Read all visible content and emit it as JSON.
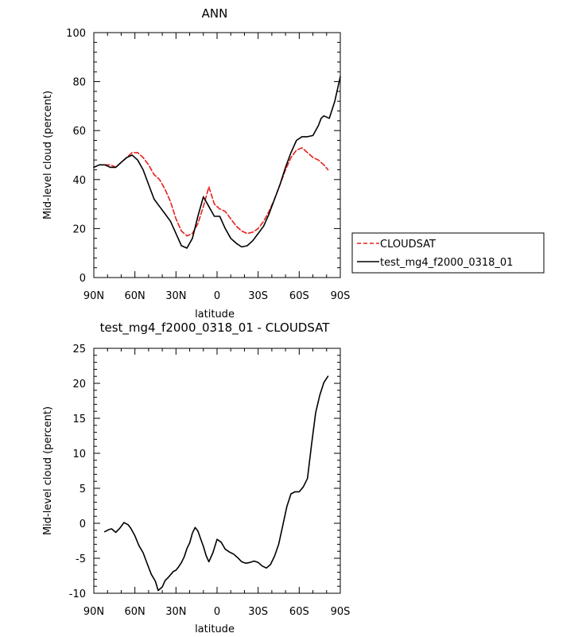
{
  "chart_data": [
    {
      "type": "line",
      "title": "ANN",
      "xlabel": "latitude",
      "ylabel": "Mid-level cloud (percent)",
      "xlim": [
        90,
        -90
      ],
      "ylim": [
        0,
        100
      ],
      "yticks": [
        0,
        20,
        40,
        60,
        80,
        100
      ],
      "xticks": [
        {
          "value": 90,
          "label": "90N"
        },
        {
          "value": 60,
          "label": "60N"
        },
        {
          "value": 30,
          "label": "30N"
        },
        {
          "value": 0,
          "label": "0"
        },
        {
          "value": -30,
          "label": "30S"
        },
        {
          "value": -60,
          "label": "60S"
        },
        {
          "value": -90,
          "label": "90S"
        }
      ],
      "legend_position": "right-bottom",
      "series": [
        {
          "name": "CLOUDSAT",
          "color": "#e8201c",
          "dash": "dashed",
          "x": [
            82,
            78,
            74,
            70,
            66,
            62,
            58,
            54,
            50,
            46,
            42,
            38,
            34,
            30,
            26,
            22,
            18,
            14,
            10,
            6,
            2,
            -2,
            -6,
            -10,
            -14,
            -18,
            -22,
            -26,
            -30,
            -34,
            -38,
            -42,
            -46,
            -50,
            -54,
            -58,
            -62,
            -66,
            -70,
            -74,
            -78,
            -81
          ],
          "y": [
            46,
            46,
            45,
            47,
            49,
            51,
            51,
            49,
            46,
            42,
            40,
            36,
            31,
            24,
            19,
            17,
            18,
            22,
            29,
            37,
            30,
            28,
            27,
            24,
            21,
            19,
            18,
            18.5,
            20,
            23,
            27,
            32,
            38,
            44,
            49,
            52,
            53,
            51,
            49,
            48,
            46,
            44
          ]
        },
        {
          "name": "test_mg4_f2000_0318_01",
          "color": "#000000",
          "dash": "solid",
          "x": [
            90,
            86,
            82,
            78,
            74,
            70,
            66,
            62,
            58,
            54,
            50,
            46,
            42,
            38,
            34,
            30,
            26,
            22,
            18,
            14,
            10,
            6,
            2,
            -2,
            -6,
            -10,
            -14,
            -18,
            -22,
            -26,
            -30,
            -34,
            -38,
            -42,
            -46,
            -50,
            -54,
            -58,
            -62,
            -66,
            -70,
            -74,
            -76,
            -78,
            -82,
            -86,
            -90
          ],
          "y": [
            45,
            46,
            46,
            45,
            45,
            47,
            49,
            50,
            48,
            44,
            38,
            32,
            29,
            26,
            23,
            18,
            13,
            12,
            16,
            25,
            33,
            29,
            25,
            25,
            20,
            16,
            14,
            12.5,
            13,
            15,
            18,
            21,
            26,
            32,
            38,
            45,
            51,
            56,
            57.5,
            57.5,
            58,
            62,
            65,
            66,
            65,
            72,
            82
          ]
        }
      ]
    },
    {
      "type": "line",
      "title": "test_mg4_f2000_0318_01 - CLOUDSAT",
      "xlabel": "latitude",
      "ylabel": "Mid-level cloud (percent)",
      "xlim": [
        90,
        -90
      ],
      "ylim": [
        -10,
        25
      ],
      "yticks": [
        -10,
        -5,
        0,
        5,
        10,
        15,
        20,
        25
      ],
      "xticks": [
        {
          "value": 90,
          "label": "90N"
        },
        {
          "value": 60,
          "label": "60N"
        },
        {
          "value": 30,
          "label": "30N"
        },
        {
          "value": 0,
          "label": "0"
        },
        {
          "value": -30,
          "label": "30S"
        },
        {
          "value": -60,
          "label": "60S"
        },
        {
          "value": -90,
          "label": "90S"
        }
      ],
      "series": [
        {
          "color": "#000000",
          "dash": "solid",
          "x": [
            82,
            79,
            77,
            74,
            71,
            68,
            65,
            63,
            60,
            57,
            54,
            51,
            48,
            45,
            43,
            40,
            38,
            35,
            32,
            30,
            28,
            26,
            24,
            22,
            20,
            18,
            16,
            14,
            12,
            10,
            8,
            6,
            3,
            0,
            -3,
            -6,
            -9,
            -12,
            -15,
            -18,
            -21,
            -24,
            -27,
            -30,
            -33,
            -36,
            -39,
            -42,
            -45,
            -48,
            -51,
            -54,
            -57,
            -60,
            -63,
            -66,
            -69,
            -72,
            -75,
            -78,
            -81
          ],
          "y": [
            -1.2,
            -0.9,
            -0.8,
            -1.3,
            -0.7,
            0.1,
            -0.2,
            -0.7,
            -1.8,
            -3.2,
            -4.2,
            -5.8,
            -7.3,
            -8.3,
            -9.6,
            -9.1,
            -8.2,
            -7.6,
            -6.9,
            -6.7,
            -6.2,
            -5.6,
            -4.8,
            -3.6,
            -2.8,
            -1.4,
            -0.6,
            -1.1,
            -2.2,
            -3.3,
            -4.6,
            -5.5,
            -4.2,
            -2.3,
            -2.7,
            -3.7,
            -4.1,
            -4.4,
            -4.9,
            -5.5,
            -5.7,
            -5.6,
            -5.4,
            -5.6,
            -6.1,
            -6.4,
            -5.9,
            -4.7,
            -3.0,
            -0.3,
            2.4,
            4.2,
            4.5,
            4.5,
            5.2,
            6.4,
            11.2,
            15.8,
            18.3,
            20.1,
            21.0
          ]
        }
      ]
    }
  ]
}
